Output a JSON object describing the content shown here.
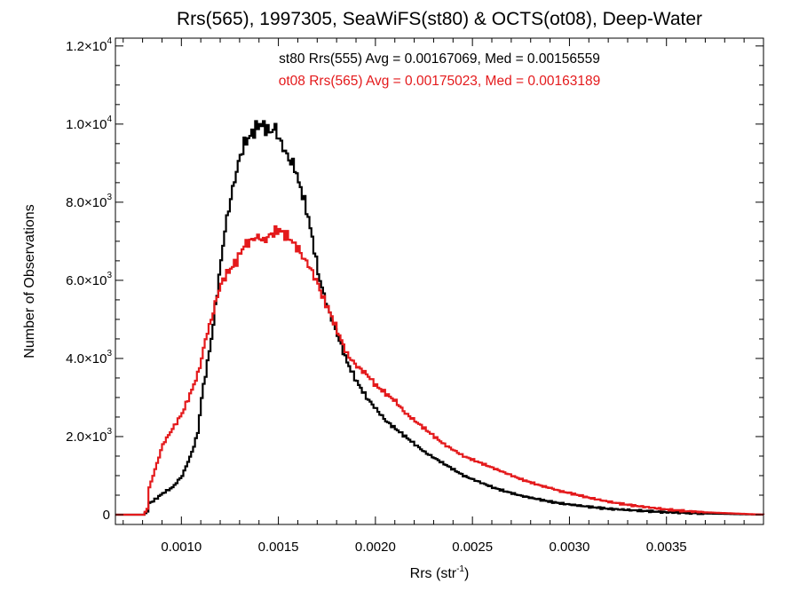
{
  "chart_data": {
    "type": "line",
    "title": "Rrs(565), 1997305, SeaWiFS(st80) & OCTS(ot08), Deep-Water",
    "xlabel": "Rrs (str",
    "xlabel_sup": "-1",
    "xlabel_close": ")",
    "ylabel": "Number of Observations",
    "xlim": [
      0.00066,
      0.004
    ],
    "ylim": [
      -250,
      12200
    ],
    "x_ticks": [
      {
        "value": 0.001,
        "label": "0.0010"
      },
      {
        "value": 0.0015,
        "label": "0.0015"
      },
      {
        "value": 0.002,
        "label": "0.0020"
      },
      {
        "value": 0.0025,
        "label": "0.0025"
      },
      {
        "value": 0.003,
        "label": "0.0030"
      },
      {
        "value": 0.0035,
        "label": "0.0035"
      }
    ],
    "y_ticks": [
      {
        "value": 0,
        "mantissa": "0",
        "exp": ""
      },
      {
        "value": 2000,
        "mantissa": "2.0×10",
        "exp": "3"
      },
      {
        "value": 4000,
        "mantissa": "4.0×10",
        "exp": "3"
      },
      {
        "value": 6000,
        "mantissa": "6.0×10",
        "exp": "3"
      },
      {
        "value": 8000,
        "mantissa": "8.0×10",
        "exp": "3"
      },
      {
        "value": 10000,
        "mantissa": "1.0×10",
        "exp": "4"
      },
      {
        "value": 12000,
        "mantissa": "1.2×10",
        "exp": "4"
      }
    ],
    "annotations": [
      {
        "text": "st80 Rrs(555) Avg = 0.00167069, Med = 0.00156559",
        "color": "#000000"
      },
      {
        "text": "ot08 Rrs(565) Avg = 0.00175023, Med = 0.00163189",
        "color": "#e41a1c"
      }
    ],
    "series": [
      {
        "color": "#000000",
        "x": [
          0.00066,
          0.0008,
          0.00082,
          0.00083,
          0.00085,
          0.0009,
          0.00095,
          0.001,
          0.00105,
          0.00108,
          0.0011,
          0.00112,
          0.00115,
          0.00118,
          0.0012,
          0.00122,
          0.00125,
          0.00128,
          0.0013,
          0.00132,
          0.00135,
          0.00138,
          0.0014,
          0.00142,
          0.00145,
          0.00148,
          0.0015,
          0.00152,
          0.00155,
          0.00158,
          0.0016,
          0.00162,
          0.00165,
          0.00168,
          0.0017,
          0.00172,
          0.00175,
          0.0018,
          0.00185,
          0.0019,
          0.00195,
          0.002,
          0.00205,
          0.0021,
          0.00215,
          0.0022,
          0.00225,
          0.0023,
          0.00235,
          0.0024,
          0.00245,
          0.0025,
          0.00255,
          0.0026,
          0.00265,
          0.0027,
          0.00275,
          0.0028,
          0.00285,
          0.0029,
          0.00295,
          0.003,
          0.0031,
          0.0032,
          0.0033,
          0.0034,
          0.0035,
          0.0036,
          0.0037,
          0.0038,
          0.0039,
          0.004
        ],
        "y": [
          0,
          0,
          80,
          300,
          350,
          550,
          700,
          1000,
          1600,
          2100,
          3000,
          3600,
          4500,
          5700,
          6500,
          7300,
          8100,
          8800,
          9200,
          9500,
          9700,
          9900,
          10000,
          9950,
          9800,
          9900,
          9600,
          9400,
          9100,
          8900,
          8500,
          8200,
          7600,
          6800,
          6200,
          5800,
          5300,
          4600,
          3900,
          3400,
          3000,
          2700,
          2400,
          2200,
          2000,
          1800,
          1600,
          1450,
          1300,
          1150,
          1000,
          900,
          800,
          700,
          620,
          550,
          480,
          430,
          380,
          330,
          290,
          260,
          200,
          150,
          120,
          90,
          60,
          45,
          30,
          20,
          10,
          0
        ]
      },
      {
        "color": "#e41a1c",
        "x": [
          0.00066,
          0.0008,
          0.00082,
          0.00083,
          0.00085,
          0.0009,
          0.00095,
          0.001,
          0.00105,
          0.00108,
          0.0011,
          0.00112,
          0.00115,
          0.00118,
          0.0012,
          0.00122,
          0.00125,
          0.00128,
          0.0013,
          0.00132,
          0.00135,
          0.00138,
          0.0014,
          0.00142,
          0.00145,
          0.00148,
          0.0015,
          0.00152,
          0.00155,
          0.00158,
          0.0016,
          0.00162,
          0.00165,
          0.00168,
          0.0017,
          0.00172,
          0.00175,
          0.0018,
          0.00185,
          0.0019,
          0.00195,
          0.002,
          0.00205,
          0.0021,
          0.00215,
          0.0022,
          0.00225,
          0.0023,
          0.00235,
          0.0024,
          0.00245,
          0.0025,
          0.00255,
          0.0026,
          0.00265,
          0.0027,
          0.00275,
          0.0028,
          0.00285,
          0.0029,
          0.00295,
          0.003,
          0.0031,
          0.0032,
          0.0033,
          0.0034,
          0.0035,
          0.0036,
          0.0037,
          0.0038,
          0.0039,
          0.004
        ],
        "y": [
          0,
          0,
          150,
          700,
          1000,
          1800,
          2200,
          2600,
          3200,
          3600,
          4000,
          4500,
          5000,
          5600,
          5900,
          6100,
          6300,
          6500,
          6700,
          6900,
          7000,
          7100,
          7100,
          7000,
          7150,
          7250,
          7300,
          7200,
          7100,
          6900,
          6800,
          6600,
          6400,
          6100,
          5900,
          5600,
          5300,
          4700,
          4100,
          3800,
          3600,
          3300,
          3100,
          2900,
          2600,
          2400,
          2200,
          2000,
          1800,
          1650,
          1500,
          1400,
          1300,
          1200,
          1100,
          1000,
          900,
          820,
          740,
          680,
          600,
          550,
          430,
          330,
          250,
          190,
          130,
          90,
          60,
          40,
          20,
          0
        ]
      }
    ]
  }
}
